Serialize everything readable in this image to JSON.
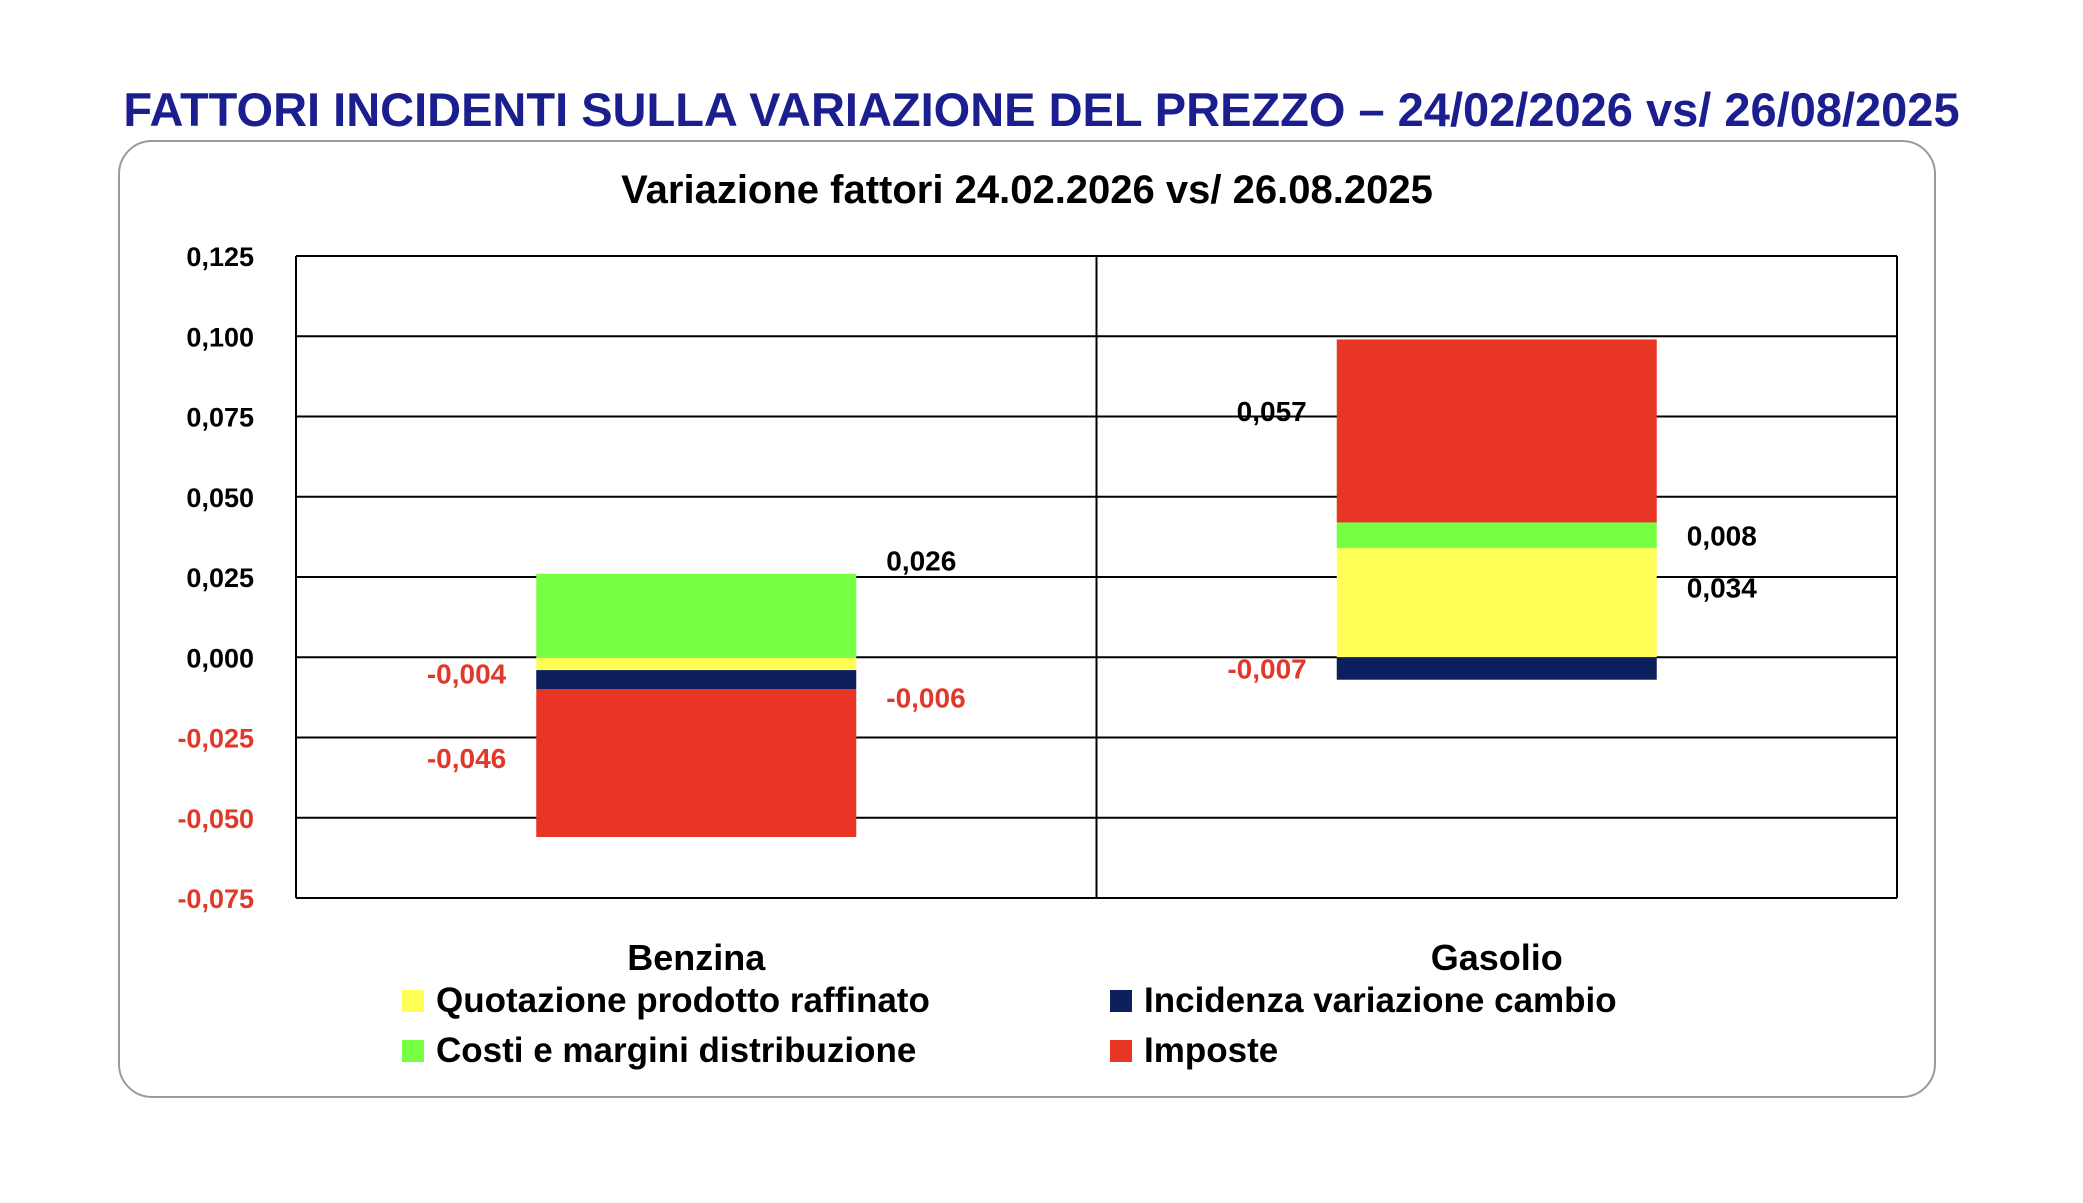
{
  "page": {
    "title": "FATTORI INCIDENTI SULLA VARIAZIONE DEL PREZZO – 24/02/2026 vs/ 26/08/2025"
  },
  "colors": {
    "title": "#1b1e8e",
    "negative_label": "#e0392b",
    "positive_label": "#000000",
    "grid": "#000000"
  },
  "chart_data": {
    "type": "bar",
    "stacked": true,
    "title": "Variazione fattori 24.02.2026 vs/ 26.08.2025",
    "categories": [
      "Benzina",
      "Gasolio"
    ],
    "ylim": [
      -0.075,
      0.125
    ],
    "yticks": [
      0.125,
      0.1,
      0.075,
      0.05,
      0.025,
      0.0,
      -0.025,
      -0.05,
      -0.075
    ],
    "ytick_labels": [
      "0,125",
      "0,100",
      "0,075",
      "0,050",
      "0,025",
      "0,000",
      "-0,025",
      "-0,050",
      "-0,075"
    ],
    "grid": true,
    "legend_position": "bottom",
    "series": [
      {
        "name": "Quotazione prodotto raffinato",
        "color": "#ffff55",
        "values": [
          -0.004,
          0.034
        ],
        "labels": [
          "-0,004",
          "0,034"
        ]
      },
      {
        "name": "Incidenza variazione cambio",
        "color": "#0d1f5c",
        "values": [
          -0.006,
          -0.007
        ],
        "labels": [
          "-0,006",
          "-0,007"
        ]
      },
      {
        "name": "Costi e margini distribuzione",
        "color": "#77ff44",
        "values": [
          0.026,
          0.008
        ],
        "labels": [
          "0,026",
          "0,008"
        ]
      },
      {
        "name": "Imposte",
        "color": "#e83526",
        "values": [
          -0.046,
          0.057
        ],
        "labels": [
          "-0,046",
          "0,057"
        ]
      }
    ]
  }
}
